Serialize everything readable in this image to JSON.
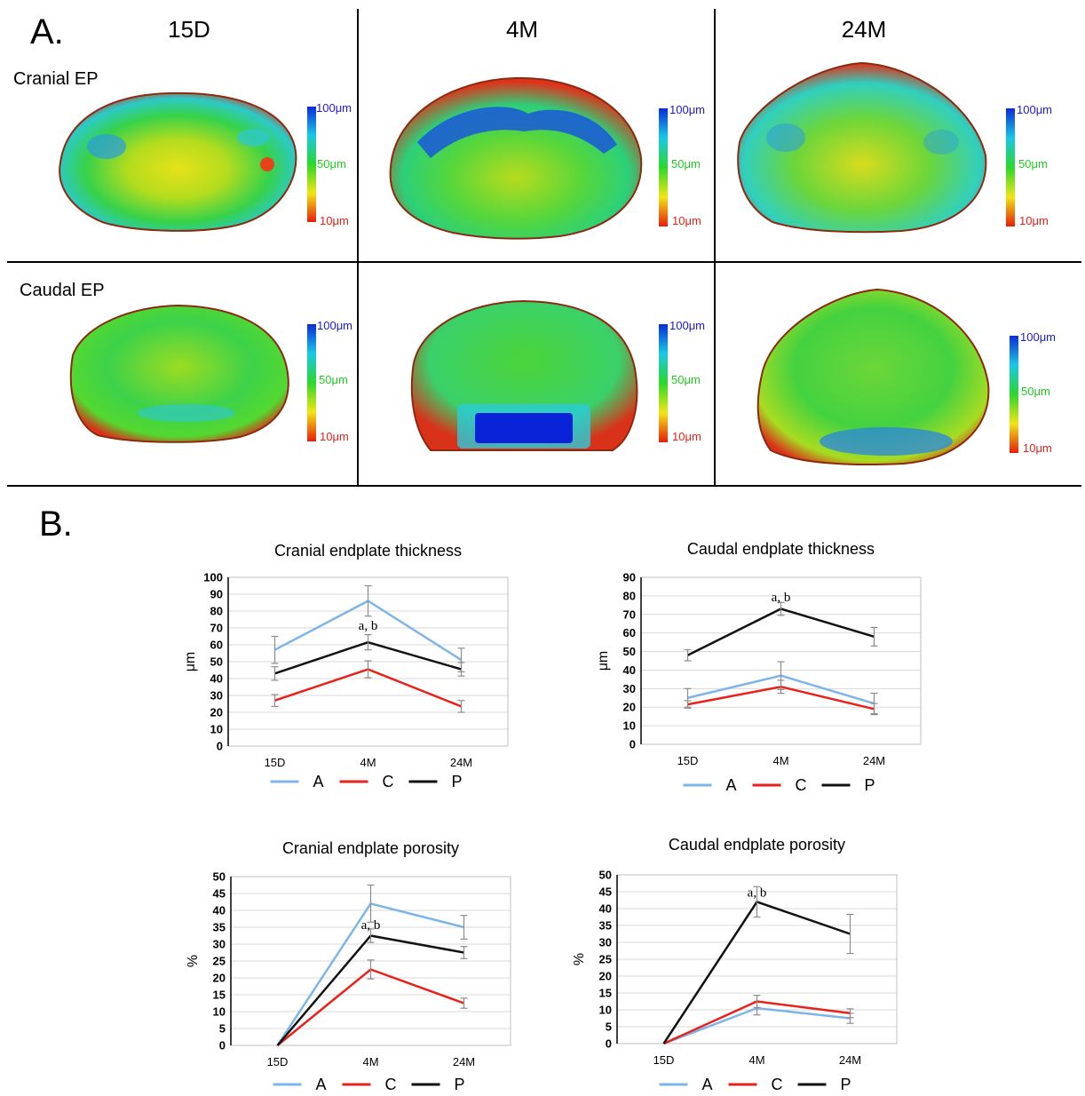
{
  "panel_a": {
    "letter": "A.",
    "columns": [
      "15D",
      "4M",
      "24M"
    ],
    "rows": [
      "Cranial EP",
      "Caudal EP"
    ],
    "scale_labels": {
      "high": "100μm",
      "mid": "50μm",
      "low": "10μm"
    },
    "scale_colors": [
      "#0b2bd8",
      "#19c8e6",
      "#2bd82b",
      "#f0e614",
      "#e81e0a"
    ]
  },
  "panel_b": {
    "letter": "B."
  },
  "legend": [
    {
      "name": "A",
      "color": "#7fb4e8"
    },
    {
      "name": "C",
      "color": "#e8211a"
    },
    {
      "name": "P",
      "color": "#111111"
    }
  ],
  "chart_data": [
    {
      "type": "line",
      "title": "Cranial endplate thickness",
      "ylabel": "μm",
      "categories": [
        "15D",
        "4M",
        "24M"
      ],
      "ylim": [
        0,
        100
      ],
      "yticks": [
        0,
        10,
        20,
        30,
        40,
        50,
        60,
        70,
        80,
        90,
        100
      ],
      "series": [
        {
          "name": "A",
          "values": [
            57,
            86,
            51
          ],
          "errors": [
            8,
            9,
            7
          ]
        },
        {
          "name": "C",
          "values": [
            27,
            45.5,
            23.5
          ],
          "errors": [
            3.5,
            5,
            3.5
          ]
        },
        {
          "name": "P",
          "values": [
            43,
            61.5,
            45.5
          ],
          "errors": [
            4,
            4.5,
            4
          ]
        }
      ],
      "annotation": {
        "text": "a, b",
        "category": "4M",
        "y": 69
      }
    },
    {
      "type": "line",
      "title": "Caudal endplate thickness",
      "ylabel": "μm",
      "categories": [
        "15D",
        "4M",
        "24M"
      ],
      "ylim": [
        0,
        90
      ],
      "yticks": [
        0,
        10,
        20,
        30,
        40,
        50,
        60,
        70,
        80,
        90
      ],
      "series": [
        {
          "name": "A",
          "values": [
            25,
            37,
            22
          ],
          "errors": [
            5,
            7.5,
            5.5
          ]
        },
        {
          "name": "C",
          "values": [
            21.5,
            31,
            19
          ],
          "errors": [
            2,
            3.5,
            3
          ]
        },
        {
          "name": "P",
          "values": [
            48,
            73,
            58
          ],
          "errors": [
            3,
            3.5,
            5
          ]
        }
      ],
      "annotation": {
        "text": "a, b",
        "category": "4M",
        "y": 77
      }
    },
    {
      "type": "line",
      "title": "Cranial endplate porosity",
      "ylabel": "%",
      "categories": [
        "15D",
        "4M",
        "24M"
      ],
      "ylim": [
        0,
        50
      ],
      "yticks": [
        0,
        5,
        10,
        15,
        20,
        25,
        30,
        35,
        40,
        45,
        50
      ],
      "series": [
        {
          "name": "A",
          "values": [
            0,
            42,
            35
          ],
          "errors": [
            0,
            5.5,
            3.5
          ]
        },
        {
          "name": "C",
          "values": [
            0,
            22.5,
            12.5
          ],
          "errors": [
            0,
            2.8,
            1.5
          ]
        },
        {
          "name": "P",
          "values": [
            0,
            32.5,
            27.5
          ],
          "errors": [
            0,
            2,
            1.8
          ]
        }
      ],
      "annotation": {
        "text": "a, b",
        "category": "4M",
        "y": 34.5
      }
    },
    {
      "type": "line",
      "title": "Caudal endplate porosity",
      "ylabel": "%",
      "categories": [
        "15D",
        "4M",
        "24M"
      ],
      "ylim": [
        0,
        50
      ],
      "yticks": [
        0,
        5,
        10,
        15,
        20,
        25,
        30,
        35,
        40,
        45,
        50
      ],
      "series": [
        {
          "name": "A",
          "values": [
            0,
            10.5,
            7.5
          ],
          "errors": [
            0,
            2,
            1.5
          ]
        },
        {
          "name": "C",
          "values": [
            0,
            12.5,
            9
          ],
          "errors": [
            0,
            1.8,
            1.3
          ]
        },
        {
          "name": "P",
          "values": [
            0,
            42,
            32.5
          ],
          "errors": [
            0,
            4.5,
            5.8
          ]
        }
      ],
      "annotation": {
        "text": "a, b",
        "category": "4M",
        "y": 43.5
      }
    }
  ]
}
